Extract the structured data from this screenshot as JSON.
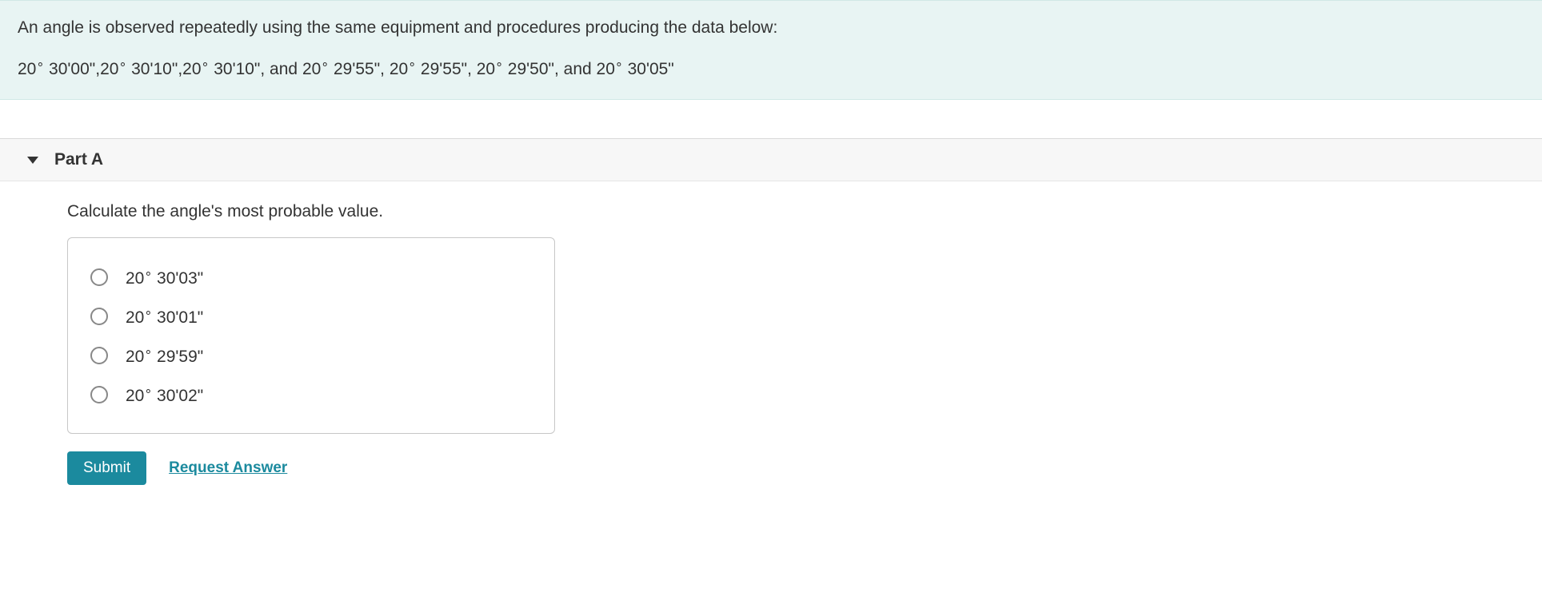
{
  "prompt": {
    "intro": "An angle is observed repeatedly using the same equipment and procedures producing the data below:",
    "data_segments": [
      {
        "type": "angle",
        "deg": "20",
        "rest": "30'00\""
      },
      {
        "type": "text",
        "value": ","
      },
      {
        "type": "angle",
        "deg": "20",
        "rest": "30'10\""
      },
      {
        "type": "text",
        "value": ","
      },
      {
        "type": "angle",
        "deg": "20",
        "rest": "30'10\""
      },
      {
        "type": "text",
        "value": ", and "
      },
      {
        "type": "angle",
        "deg": "20",
        "rest": "29'55\""
      },
      {
        "type": "text",
        "value": ", "
      },
      {
        "type": "angle",
        "deg": "20",
        "rest": "29'55\""
      },
      {
        "type": "text",
        "value": ", "
      },
      {
        "type": "angle",
        "deg": "20",
        "rest": "29'50\""
      },
      {
        "type": "text",
        "value": ", and "
      },
      {
        "type": "angle",
        "deg": "20",
        "rest": "30'05\""
      }
    ]
  },
  "part": {
    "title": "Part A",
    "question": "Calculate the angle's most probable value.",
    "options": [
      {
        "deg": "20",
        "rest": "30'03\""
      },
      {
        "deg": "20",
        "rest": "30'01\""
      },
      {
        "deg": "20",
        "rest": "29'59\""
      },
      {
        "deg": "20",
        "rest": "30'02\""
      }
    ]
  },
  "actions": {
    "submit": "Submit",
    "request": "Request Answer"
  },
  "colors": {
    "prompt_bg": "#e8f4f3",
    "accent": "#1b8a9e",
    "header_bg": "#f7f7f7",
    "border": "#c7c7c7"
  }
}
